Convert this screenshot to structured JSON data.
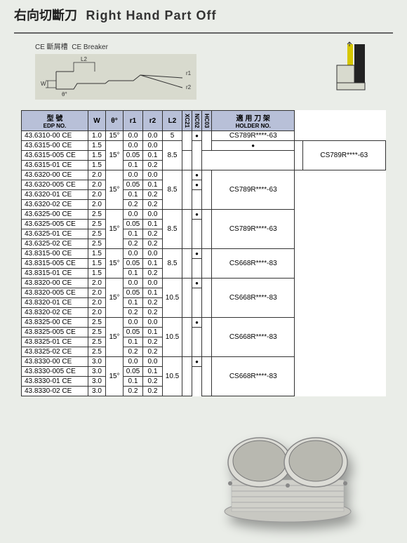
{
  "header": {
    "title_cn": "右向切斷刀",
    "title_en": "Right Hand Part Off"
  },
  "diagram": {
    "breaker_label_cn": "CE 斷屑槽",
    "breaker_label_en": "CE Breaker",
    "l2": "L2",
    "w": "W",
    "theta": "θ°",
    "r1": "r1",
    "r2": "r2",
    "diag_bg": "#d8dace",
    "line_color": "#333"
  },
  "table": {
    "headers": {
      "edp": "型 號",
      "edp_sub": "EDP NO.",
      "w": "W",
      "theta": "θ°",
      "r1": "r1",
      "r2": "r2",
      "l2": "L2",
      "xc21": "XC21",
      "nc02": "NC02",
      "hc03": "HC03",
      "holder": "適 用 刀 架",
      "holder_sub": "HOLDER NO."
    },
    "rows": [
      {
        "edp": "43.6310-00  CE",
        "w": "1.0",
        "theta": "15°",
        "r1": "0.0",
        "r2": "0.0",
        "l2": "5",
        "xc21": "",
        "nc02": "●",
        "hc03": "",
        "holder": "CS789R****-63",
        "ts": 1,
        "ls": 1,
        "gs": 2,
        "hs": 1
      },
      {
        "edp": "43.6315-00  CE",
        "w": "1.5",
        "theta": "15°",
        "r1": "0.0",
        "r2": "0.0",
        "l2": "8.5",
        "xc21": "",
        "nc02": "●",
        "hc03": "",
        "holder": "CS789R****-63",
        "ts": 3,
        "ls": 3,
        "gs": 0,
        "hs": 3
      },
      {
        "edp": "43.6315-005 CE",
        "w": "1.5",
        "theta": "",
        "r1": "0.05",
        "r2": "0.1",
        "l2": "",
        "xc21": "",
        "nc02": "",
        "hc03": "",
        "holder": "",
        "ts": 0,
        "ls": 0,
        "gs": 0,
        "hs": 0
      },
      {
        "edp": "43.6315-01  CE",
        "w": "1.5",
        "theta": "",
        "r1": "0.1",
        "r2": "0.2",
        "l2": "",
        "xc21": "",
        "nc02": "",
        "hc03": "",
        "holder": "",
        "ts": 0,
        "ls": 0,
        "gs": 0,
        "hs": 0
      },
      {
        "edp": "43.6320-00  CE",
        "w": "2.0",
        "theta": "15°",
        "r1": "0.0",
        "r2": "0.0",
        "l2": "8.5",
        "xc21": "",
        "nc02": "●",
        "hc03": "",
        "holder": "CS789R****-63",
        "ts": 4,
        "ls": 4,
        "gs": 0,
        "hs": 4
      },
      {
        "edp": "43.6320-005 CE",
        "w": "2.0",
        "theta": "",
        "r1": "0.05",
        "r2": "0.1",
        "l2": "",
        "xc21": "",
        "nc02": "●",
        "hc03": "",
        "holder": "",
        "ts": 0,
        "ls": 0,
        "gs": 0,
        "hs": 0
      },
      {
        "edp": "43.6320-01  CE",
        "w": "2.0",
        "theta": "",
        "r1": "0.1",
        "r2": "0.2",
        "l2": "",
        "xc21": "",
        "nc02": "",
        "hc03": "",
        "holder": "",
        "ts": 0,
        "ls": 0,
        "gs": 0,
        "hs": 0
      },
      {
        "edp": "43.6320-02  CE",
        "w": "2.0",
        "theta": "",
        "r1": "0.2",
        "r2": "0.2",
        "l2": "",
        "xc21": "",
        "nc02": "",
        "hc03": "",
        "holder": "",
        "ts": 0,
        "ls": 0,
        "gs": 0,
        "hs": 0
      },
      {
        "edp": "43.6325-00  CE",
        "w": "2.5",
        "theta": "15°",
        "r1": "0.0",
        "r2": "0.0",
        "l2": "8.5",
        "xc21": "",
        "nc02": "●",
        "hc03": "",
        "holder": "CS789R****-63",
        "ts": 4,
        "ls": 4,
        "gs": 0,
        "hs": 4
      },
      {
        "edp": "43.6325-005 CE",
        "w": "2.5",
        "theta": "",
        "r1": "0.05",
        "r2": "0.1",
        "l2": "",
        "xc21": "",
        "nc02": "",
        "hc03": "",
        "holder": "",
        "ts": 0,
        "ls": 0,
        "gs": 0,
        "hs": 0
      },
      {
        "edp": "43.6325-01  CE",
        "w": "2.5",
        "theta": "",
        "r1": "0.1",
        "r2": "0.2",
        "l2": "",
        "xc21": "",
        "nc02": "",
        "hc03": "",
        "holder": "",
        "ts": 0,
        "ls": 0,
        "gs": 0,
        "hs": 0
      },
      {
        "edp": "43.6325-02  CE",
        "w": "2.5",
        "theta": "",
        "r1": "0.2",
        "r2": "0.2",
        "l2": "",
        "xc21": "",
        "nc02": "",
        "hc03": "",
        "holder": "",
        "ts": 0,
        "ls": 0,
        "gs": 0,
        "hs": 0
      },
      {
        "edp": "43.8315-00  CE",
        "w": "1.5",
        "theta": "15°",
        "r1": "0.0",
        "r2": "0.0",
        "l2": "8.5",
        "xc21": "",
        "nc02": "●",
        "hc03": "",
        "holder": "CS668R****-83",
        "ts": 3,
        "ls": 3,
        "gs": 0,
        "hs": 3
      },
      {
        "edp": "43.8315-005 CE",
        "w": "1.5",
        "theta": "",
        "r1": "0.05",
        "r2": "0.1",
        "l2": "",
        "xc21": "",
        "nc02": "",
        "hc03": "",
        "holder": "",
        "ts": 0,
        "ls": 0,
        "gs": 0,
        "hs": 0
      },
      {
        "edp": "43.8315-01  CE",
        "w": "1.5",
        "theta": "",
        "r1": "0.1",
        "r2": "0.2",
        "l2": "",
        "xc21": "",
        "nc02": "",
        "hc03": "",
        "holder": "",
        "ts": 0,
        "ls": 0,
        "gs": 0,
        "hs": 0
      },
      {
        "edp": "43.8320-00  CE",
        "w": "2.0",
        "theta": "15°",
        "r1": "0.0",
        "r2": "0.0",
        "l2": "10.5",
        "xc21": "",
        "nc02": "●",
        "hc03": "",
        "holder": "CS668R****-83",
        "ts": 4,
        "ls": 4,
        "gs": 0,
        "hs": 4
      },
      {
        "edp": "43.8320-005 CE",
        "w": "2.0",
        "theta": "",
        "r1": "0.05",
        "r2": "0.1",
        "l2": "",
        "xc21": "",
        "nc02": "",
        "hc03": "",
        "holder": "",
        "ts": 0,
        "ls": 0,
        "gs": 0,
        "hs": 0
      },
      {
        "edp": "43.8320-01  CE",
        "w": "2.0",
        "theta": "",
        "r1": "0.1",
        "r2": "0.2",
        "l2": "",
        "xc21": "",
        "nc02": "",
        "hc03": "",
        "holder": "",
        "ts": 0,
        "ls": 0,
        "gs": 0,
        "hs": 0
      },
      {
        "edp": "43.8320-02  CE",
        "w": "2.0",
        "theta": "",
        "r1": "0.2",
        "r2": "0.2",
        "l2": "",
        "xc21": "",
        "nc02": "",
        "hc03": "",
        "holder": "",
        "ts": 0,
        "ls": 0,
        "gs": 0,
        "hs": 0
      },
      {
        "edp": "43.8325-00  CE",
        "w": "2.5",
        "theta": "15°",
        "r1": "0.0",
        "r2": "0.0",
        "l2": "10.5",
        "xc21": "",
        "nc02": "●",
        "hc03": "",
        "holder": "CS668R****-83",
        "ts": 4,
        "ls": 4,
        "gs": 0,
        "hs": 4
      },
      {
        "edp": "43.8325-005 CE",
        "w": "2.5",
        "theta": "",
        "r1": "0.05",
        "r2": "0.1",
        "l2": "",
        "xc21": "",
        "nc02": "",
        "hc03": "",
        "holder": "",
        "ts": 0,
        "ls": 0,
        "gs": 0,
        "hs": 0
      },
      {
        "edp": "43.8325-01  CE",
        "w": "2.5",
        "theta": "",
        "r1": "0.1",
        "r2": "0.2",
        "l2": "",
        "xc21": "",
        "nc02": "",
        "hc03": "",
        "holder": "",
        "ts": 0,
        "ls": 0,
        "gs": 0,
        "hs": 0
      },
      {
        "edp": "43.8325-02  CE",
        "w": "2.5",
        "theta": "",
        "r1": "0.2",
        "r2": "0.2",
        "l2": "",
        "xc21": "",
        "nc02": "",
        "hc03": "",
        "holder": "",
        "ts": 0,
        "ls": 0,
        "gs": 0,
        "hs": 0
      },
      {
        "edp": "43.8330-00  CE",
        "w": "3.0",
        "theta": "15°",
        "r1": "0.0",
        "r2": "0.0",
        "l2": "10.5",
        "xc21": "",
        "nc02": "●",
        "hc03": "",
        "holder": "CS668R****-83",
        "ts": 4,
        "ls": 4,
        "gs": 0,
        "hs": 4
      },
      {
        "edp": "43.8330-005 CE",
        "w": "3.0",
        "theta": "",
        "r1": "0.05",
        "r2": "0.1",
        "l2": "",
        "xc21": "",
        "nc02": "",
        "hc03": "",
        "holder": "",
        "ts": 0,
        "ls": 0,
        "gs": 0,
        "hs": 0
      },
      {
        "edp": "43.8330-01  CE",
        "w": "3.0",
        "theta": "",
        "r1": "0.1",
        "r2": "0.2",
        "l2": "",
        "xc21": "",
        "nc02": "",
        "hc03": "",
        "holder": "",
        "ts": 0,
        "ls": 0,
        "gs": 0,
        "hs": 0
      },
      {
        "edp": "43.8330-02  CE",
        "w": "3.0",
        "theta": "",
        "r1": "0.2",
        "r2": "0.2",
        "l2": "",
        "xc21": "",
        "nc02": "",
        "hc03": "",
        "holder": "",
        "ts": 0,
        "ls": 0,
        "gs": 0,
        "hs": 0
      }
    ]
  },
  "colors": {
    "page_bg": "#eaede8",
    "header_bg": "#b8c0d8",
    "insert_yellow": "#d6c700",
    "holder_black": "#222",
    "diag_bg": "#d8dace"
  }
}
